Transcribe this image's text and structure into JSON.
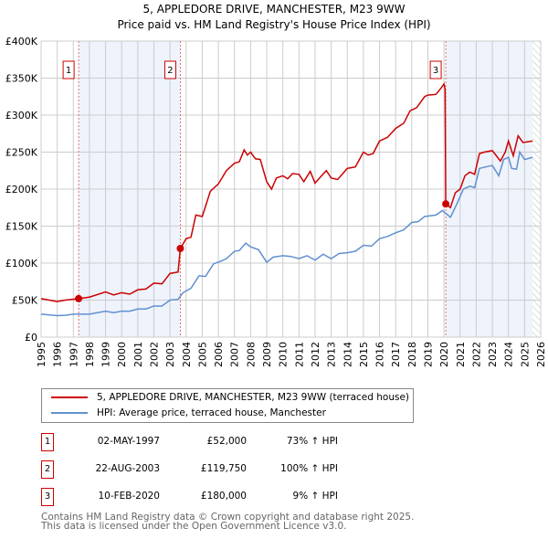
{
  "chart_data": {
    "type": "line",
    "title": "5, APPLEDORE DRIVE, MANCHESTER, M23 9WW",
    "subtitle": "Price paid vs. HM Land Registry's House Price Index (HPI)",
    "xlim": [
      1995,
      2026
    ],
    "ylim": [
      0,
      400000
    ],
    "x_ticks": [
      "1995",
      "1996",
      "1997",
      "1998",
      "1999",
      "2000",
      "2001",
      "2002",
      "2003",
      "2004",
      "2005",
      "2006",
      "2007",
      "2008",
      "2009",
      "2010",
      "2011",
      "2012",
      "2013",
      "2014",
      "2015",
      "2016",
      "2017",
      "2018",
      "2019",
      "2020",
      "2021",
      "2022",
      "2023",
      "2024",
      "2025",
      "2026"
    ],
    "y_ticks": [
      {
        "v": 0,
        "label": "£0"
      },
      {
        "v": 50000,
        "label": "£50K"
      },
      {
        "v": 100000,
        "label": "£100K"
      },
      {
        "v": 150000,
        "label": "£150K"
      },
      {
        "v": 200000,
        "label": "£200K"
      },
      {
        "v": 250000,
        "label": "£250K"
      },
      {
        "v": 300000,
        "label": "£300K"
      },
      {
        "v": 350000,
        "label": "£350K"
      },
      {
        "v": 400000,
        "label": "£400K"
      }
    ],
    "grid": true,
    "series": [
      {
        "name": "5, APPLEDORE DRIVE, MANCHESTER, M23 9WW (terraced house)",
        "color": "#cc0000",
        "points": [
          [
            1995,
            52000
          ],
          [
            1996,
            48000
          ],
          [
            1996.5,
            50000
          ],
          [
            1997.33,
            52000
          ],
          [
            1998,
            54000
          ],
          [
            1999,
            61000
          ],
          [
            1999.5,
            57000
          ],
          [
            2000,
            60000
          ],
          [
            2000.5,
            58000
          ],
          [
            2001,
            64000
          ],
          [
            2001.5,
            65000
          ],
          [
            2002,
            73000
          ],
          [
            2002.5,
            72000
          ],
          [
            2003,
            86000
          ],
          [
            2003.5,
            88000
          ],
          [
            2003.64,
            119750
          ],
          [
            2004,
            133000
          ],
          [
            2004.3,
            135000
          ],
          [
            2004.6,
            165000
          ],
          [
            2005,
            163000
          ],
          [
            2005.5,
            197000
          ],
          [
            2006,
            207000
          ],
          [
            2006.5,
            225000
          ],
          [
            2007,
            235000
          ],
          [
            2007.3,
            237000
          ],
          [
            2007.6,
            253000
          ],
          [
            2007.8,
            246000
          ],
          [
            2008,
            250000
          ],
          [
            2008.3,
            241000
          ],
          [
            2008.6,
            240000
          ],
          [
            2009,
            210000
          ],
          [
            2009.3,
            200000
          ],
          [
            2009.6,
            215000
          ],
          [
            2010,
            218000
          ],
          [
            2010.3,
            214000
          ],
          [
            2010.6,
            221000
          ],
          [
            2011,
            220000
          ],
          [
            2011.3,
            210000
          ],
          [
            2011.7,
            224000
          ],
          [
            2012,
            208000
          ],
          [
            2012.4,
            218000
          ],
          [
            2012.7,
            225000
          ],
          [
            2013,
            215000
          ],
          [
            2013.4,
            213000
          ],
          [
            2014,
            228000
          ],
          [
            2014.5,
            230000
          ],
          [
            2015,
            250000
          ],
          [
            2015.3,
            246000
          ],
          [
            2015.6,
            248000
          ],
          [
            2016,
            265000
          ],
          [
            2016.5,
            270000
          ],
          [
            2017,
            282000
          ],
          [
            2017.5,
            289000
          ],
          [
            2017.9,
            306000
          ],
          [
            2018.3,
            310000
          ],
          [
            2018.8,
            325000
          ],
          [
            2019,
            327000
          ],
          [
            2019.5,
            328000
          ],
          [
            2019.8,
            336000
          ],
          [
            2020,
            342000
          ],
          [
            2020.07,
            335000
          ],
          [
            2020.11,
            180000
          ],
          [
            2020.4,
            175000
          ],
          [
            2020.7,
            195000
          ],
          [
            2021,
            200000
          ],
          [
            2021.3,
            218000
          ],
          [
            2021.6,
            223000
          ],
          [
            2021.9,
            220000
          ],
          [
            2022.2,
            248000
          ],
          [
            2022.5,
            250000
          ],
          [
            2023,
            252000
          ],
          [
            2023.5,
            238000
          ],
          [
            2023.8,
            250000
          ],
          [
            2024,
            265000
          ],
          [
            2024.3,
            245000
          ],
          [
            2024.6,
            272000
          ],
          [
            2024.9,
            263000
          ],
          [
            2025.5,
            265000
          ]
        ]
      },
      {
        "name": "HPI: Average price, terraced house, Manchester",
        "color": "#6090d0",
        "points": [
          [
            1995,
            31000
          ],
          [
            1996,
            29000
          ],
          [
            1996.5,
            29500
          ],
          [
            1997,
            31000
          ],
          [
            1998,
            31000
          ],
          [
            1999,
            35000
          ],
          [
            1999.5,
            33000
          ],
          [
            2000,
            35000
          ],
          [
            2000.5,
            35000
          ],
          [
            2001,
            38000
          ],
          [
            2001.5,
            38000
          ],
          [
            2002,
            42000
          ],
          [
            2002.5,
            42000
          ],
          [
            2003,
            50000
          ],
          [
            2003.5,
            51000
          ],
          [
            2003.8,
            60000
          ],
          [
            2004.3,
            66000
          ],
          [
            2004.8,
            83000
          ],
          [
            2005.2,
            82000
          ],
          [
            2005.7,
            99000
          ],
          [
            2006.2,
            103000
          ],
          [
            2006.5,
            106000
          ],
          [
            2007,
            116000
          ],
          [
            2007.3,
            117000
          ],
          [
            2007.7,
            127000
          ],
          [
            2008,
            122000
          ],
          [
            2008.5,
            118000
          ],
          [
            2009,
            101000
          ],
          [
            2009.4,
            108000
          ],
          [
            2010,
            110000
          ],
          [
            2010.5,
            109000
          ],
          [
            2011,
            106000
          ],
          [
            2011.5,
            110000
          ],
          [
            2012,
            104000
          ],
          [
            2012.5,
            112000
          ],
          [
            2013,
            106000
          ],
          [
            2013.5,
            113000
          ],
          [
            2014,
            114000
          ],
          [
            2014.5,
            116000
          ],
          [
            2015,
            124000
          ],
          [
            2015.5,
            123000
          ],
          [
            2016,
            133000
          ],
          [
            2016.5,
            136000
          ],
          [
            2017,
            141000
          ],
          [
            2017.5,
            145000
          ],
          [
            2018,
            155000
          ],
          [
            2018.4,
            156000
          ],
          [
            2018.8,
            163000
          ],
          [
            2019.5,
            165000
          ],
          [
            2019.9,
            171000
          ],
          [
            2020.4,
            162000
          ],
          [
            2020.8,
            180000
          ],
          [
            2021.2,
            200000
          ],
          [
            2021.6,
            204000
          ],
          [
            2021.9,
            202000
          ],
          [
            2022.2,
            228000
          ],
          [
            2022.6,
            230000
          ],
          [
            2023,
            232000
          ],
          [
            2023.4,
            218000
          ],
          [
            2023.7,
            240000
          ],
          [
            2024,
            243000
          ],
          [
            2024.2,
            228000
          ],
          [
            2024.5,
            227000
          ],
          [
            2024.7,
            250000
          ],
          [
            2025,
            240000
          ],
          [
            2025.5,
            243000
          ]
        ]
      }
    ],
    "sales": [
      {
        "n": "1",
        "x": 1997.33,
        "y": 52000,
        "date": "02-MAY-1997",
        "price": "£52,000",
        "hpi": "73% ↑ HPI"
      },
      {
        "n": "2",
        "x": 2003.64,
        "y": 119750,
        "date": "22-AUG-2003",
        "price": "£119,750",
        "hpi": "100% ↑ HPI"
      },
      {
        "n": "3",
        "x": 2020.11,
        "y": 180000,
        "date": "10-FEB-2020",
        "price": "£180,000",
        "hpi": "9% ↑ HPI"
      }
    ],
    "shaded_ranges": [
      [
        1997.33,
        2003.64
      ],
      [
        2020.11,
        2025.5
      ]
    ],
    "projection_start": 2025.5
  },
  "footer": [
    "Contains HM Land Registry data © Crown copyright and database right 2025.",
    "This data is licensed under the Open Government Licence v3.0."
  ]
}
